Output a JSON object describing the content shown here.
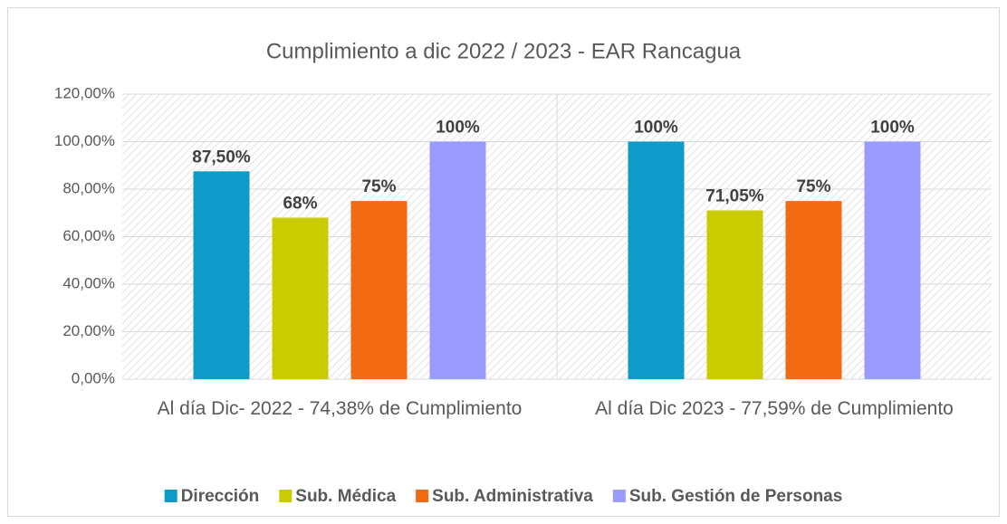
{
  "chart_data": {
    "type": "bar",
    "title": "Cumplimiento  a dic 2022 / 2023 - EAR Rancagua",
    "categories": [
      "Al día Dic- 2022 - 74,38% de Cumplimiento",
      "Al día Dic 2023 - 77,59% de Cumplimiento"
    ],
    "series": [
      {
        "name": "Dirección",
        "color": "#0e9bc9",
        "values": [
          87.5,
          100
        ],
        "value_labels": [
          "87,50%",
          "100%"
        ]
      },
      {
        "name": "Sub. Médica",
        "color": "#c9cc00",
        "values": [
          68,
          71.05
        ],
        "value_labels": [
          "68%",
          "71,05%"
        ]
      },
      {
        "name": "Sub. Administrativa",
        "color": "#f26a12",
        "values": [
          75,
          75
        ],
        "value_labels": [
          "75%",
          "75%"
        ]
      },
      {
        "name": "Sub. Gestión de Personas",
        "color": "#9b9bff",
        "values": [
          100,
          100
        ],
        "value_labels": [
          "100%",
          "100%"
        ]
      }
    ],
    "ylim": [
      0,
      120
    ],
    "yticks": [
      {
        "value": 0,
        "label": "0,00%"
      },
      {
        "value": 20,
        "label": "20,00%"
      },
      {
        "value": 40,
        "label": "40,00%"
      },
      {
        "value": 60,
        "label": "60,00%"
      },
      {
        "value": 80,
        "label": "80,00%"
      },
      {
        "value": 100,
        "label": "100,00%"
      },
      {
        "value": 120,
        "label": "120,00%"
      }
    ],
    "grid": true,
    "legend": "bottom"
  }
}
